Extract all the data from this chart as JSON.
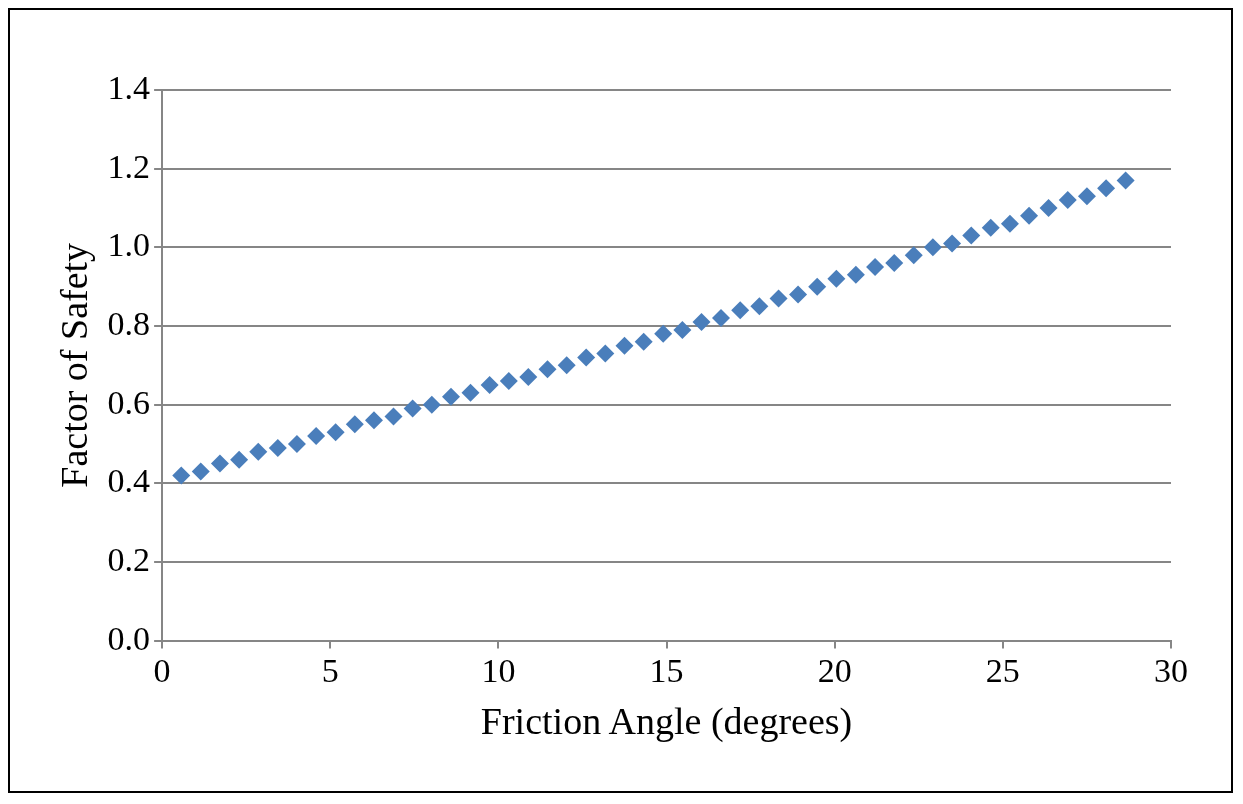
{
  "chart_data": {
    "type": "scatter",
    "xlabel": "Friction Angle (degrees)",
    "ylabel": "Factor of Safety",
    "xlim": [
      0,
      30
    ],
    "xticks": [
      0,
      5,
      10,
      15,
      20,
      25,
      30
    ],
    "ylim": [
      0,
      1.4
    ],
    "yticks": [
      {
        "value": 0,
        "label": "0.0"
      },
      0.2,
      0.4,
      0.6,
      0.8,
      {
        "value": 1,
        "label": "1.0"
      },
      1.2,
      1.4
    ],
    "grid": "y",
    "legend": false,
    "marker": "diamond",
    "series": [
      {
        "color": "#4a7ebb",
        "x": [
          0.57,
          1.15,
          1.72,
          2.29,
          2.86,
          3.44,
          4.01,
          4.58,
          5.16,
          5.73,
          6.3,
          6.88,
          7.45,
          8.02,
          8.59,
          9.17,
          9.74,
          10.31,
          10.89,
          11.46,
          12.03,
          12.61,
          13.18,
          13.75,
          14.32,
          14.9,
          15.47,
          16.04,
          16.62,
          17.19,
          17.76,
          18.33,
          18.91,
          19.48,
          20.05,
          20.63,
          21.2,
          21.77,
          22.35,
          22.92,
          23.49,
          24.06,
          24.64,
          25.21,
          25.78,
          26.36,
          26.93,
          27.5,
          28.07,
          28.65
        ],
        "values": [
          0.42,
          0.43,
          0.45,
          0.46,
          0.48,
          0.49,
          0.5,
          0.52,
          0.53,
          0.55,
          0.56,
          0.57,
          0.59,
          0.6,
          0.62,
          0.63,
          0.65,
          0.66,
          0.67,
          0.69,
          0.7,
          0.72,
          0.73,
          0.75,
          0.76,
          0.78,
          0.79,
          0.81,
          0.82,
          0.84,
          0.85,
          0.87,
          0.88,
          0.9,
          0.92,
          0.93,
          0.95,
          0.96,
          0.98,
          1.0,
          1.01,
          1.03,
          1.05,
          1.06,
          1.08,
          1.1,
          1.12,
          1.13,
          1.15,
          1.17
        ]
      }
    ]
  }
}
